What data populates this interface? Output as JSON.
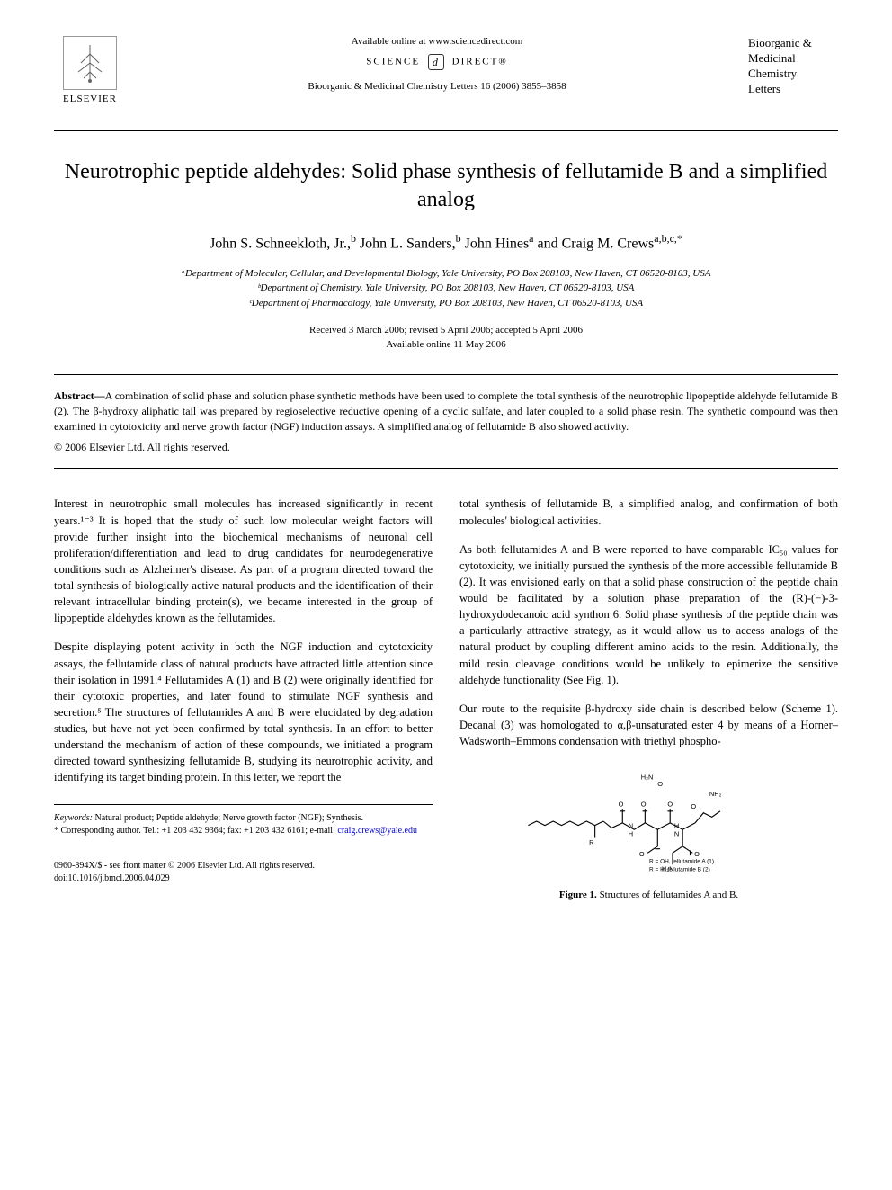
{
  "header": {
    "available_online": "Available online at www.sciencedirect.com",
    "science_direct_left": "SCIENCE",
    "science_direct_right": "DIRECT®",
    "journal_ref": "Bioorganic & Medicinal Chemistry Letters 16 (2006) 3855–3858",
    "elsevier_label": "ELSEVIER",
    "journal_title_lines": [
      "Bioorganic &",
      "Medicinal",
      "Chemistry",
      "Letters"
    ]
  },
  "title": "Neurotrophic peptide aldehydes: Solid phase synthesis of fellutamide B and a simplified analog",
  "authors_html": "John S. Schneekloth, Jr.,<sup>b</sup> John L. Sanders,<sup>b</sup> John Hines<sup>a</sup> and Craig M. Crews<sup>a,b,c,*</sup>",
  "affiliations": [
    "ᵃDepartment of Molecular, Cellular, and Developmental Biology, Yale University, PO Box 208103, New Haven, CT 06520-8103, USA",
    "ᵇDepartment of Chemistry, Yale University, PO Box 208103, New Haven, CT 06520-8103, USA",
    "ᶜDepartment of Pharmacology, Yale University, PO Box 208103, New Haven, CT 06520-8103, USA"
  ],
  "dates": {
    "received": "Received 3 March 2006; revised 5 April 2006; accepted 5 April 2006",
    "available": "Available online 11 May 2006"
  },
  "abstract": {
    "label": "Abstract—",
    "text": "A combination of solid phase and solution phase synthetic methods have been used to complete the total synthesis of the neurotrophic lipopeptide aldehyde fellutamide B (2). The β-hydroxy aliphatic tail was prepared by regioselective reductive opening of a cyclic sulfate, and later coupled to a solid phase resin. The synthetic compound was then examined in cytotoxicity and nerve growth factor (NGF) induction assays. A simplified analog of fellutamide B also showed activity.",
    "copyright": "© 2006 Elsevier Ltd. All rights reserved."
  },
  "body": {
    "left_paragraphs": [
      "Interest in neurotrophic small molecules has increased significantly in recent years.¹⁻³ It is hoped that the study of such low molecular weight factors will provide further insight into the biochemical mechanisms of neuronal cell proliferation/differentiation and lead to drug candidates for neurodegenerative conditions such as Alzheimer's disease. As part of a program directed toward the total synthesis of biologically active natural products and the identification of their relevant intracellular binding protein(s), we became interested in the group of lipopeptide aldehydes known as the fellutamides.",
      "Despite displaying potent activity in both the NGF induction and cytotoxicity assays, the fellutamide class of natural products have attracted little attention since their isolation in 1991.⁴ Fellutamides A (1) and B (2) were originally identified for their cytotoxic properties, and later found to stimulate NGF synthesis and secretion.⁵ The structures of fellutamides A and B were elucidated by degradation studies, but have not yet been confirmed by total synthesis. In an effort to better understand the mechanism of action of these compounds, we initiated a program directed toward synthesizing fellutamide B, studying its neurotrophic activity, and identifying its target binding protein. In this letter, we report the"
    ],
    "right_paragraphs": [
      "total synthesis of fellutamide B, a simplified analog, and confirmation of both molecules' biological activities.",
      "As both fellutamides A and B were reported to have comparable IC₅₀ values for cytotoxicity, we initially pursued the synthesis of the more accessible fellutamide B (2). It was envisioned early on that a solid phase construction of the peptide chain would be facilitated by a solution phase preparation of the (R)-(−)-3-hydroxydodecanoic acid synthon 6. Solid phase synthesis of the peptide chain was a particularly attractive strategy, as it would allow us to access analogs of the natural product by coupling different amino acids to the resin. Additionally, the mild resin cleavage conditions would be unlikely to epimerize the sensitive aldehyde functionality (See Fig. 1).",
      "Our route to the requisite β-hydroxy side chain is described below (Scheme 1). Decanal (3) was homologated to α,β-unsaturated ester 4 by means of a Horner–Wadsworth–Emmons condensation with triethyl phospho-"
    ]
  },
  "figure1": {
    "label": "Figure 1.",
    "caption": "Structures of fellutamides A and B.",
    "legend_line1": "R = OH, fellutamide A (1)",
    "legend_line2": "R = H, fellutamide B (2)",
    "atom_labels": [
      "H₂N",
      "O",
      "R",
      "O",
      "H",
      "N",
      "O",
      "O",
      "N",
      "H",
      "NH₂",
      "O",
      "H₂N",
      "O",
      "O"
    ]
  },
  "footnotes": {
    "keywords_label": "Keywords:",
    "keywords": "Natural product; Peptide aldehyde; Nerve growth factor (NGF); Synthesis.",
    "corresponding": "* Corresponding author. Tel.: +1 203 432 9364; fax: +1 203 432 6161; e-mail:",
    "email": "craig.crews@yale.edu"
  },
  "bottom": {
    "issn": "0960-894X/$ - see front matter © 2006 Elsevier Ltd. All rights reserved.",
    "doi": "doi:10.1016/j.bmcl.2006.04.029"
  },
  "colors": {
    "text": "#000000",
    "link": "#0000cc",
    "background": "#ffffff"
  }
}
